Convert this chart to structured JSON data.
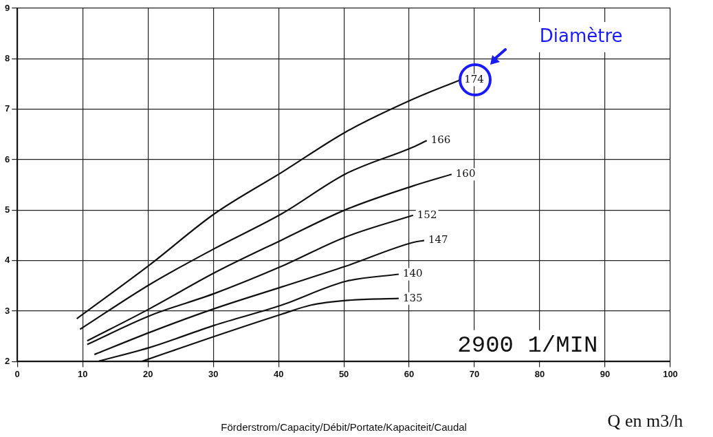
{
  "chart_data": {
    "type": "line",
    "xlabel": "Förderstrom/Capacity/Débit/Portate/Kapaciteit/Caudal",
    "annotations": [
      "Diamètre",
      "2900 1/MIN",
      "Q en m3/h"
    ],
    "xlim": [
      0,
      100
    ],
    "ylim": [
      2,
      9
    ],
    "xticks": [
      0,
      10,
      20,
      30,
      40,
      50,
      60,
      70,
      80,
      90,
      100
    ],
    "yticks": [
      2,
      3,
      4,
      5,
      6,
      7,
      8,
      9
    ],
    "grid": true,
    "legend": false,
    "marker": "none",
    "line_style": "solid",
    "series": [
      {
        "name": "174",
        "color": "#111111",
        "x": [
          9.1,
          20.3,
          30.2,
          40.5,
          50.3,
          60.6,
          67.8
        ],
        "values": [
          2.85,
          3.92,
          4.93,
          5.75,
          6.55,
          7.2,
          7.58
        ]
      },
      {
        "name": "166",
        "color": "#111111",
        "x": [
          9.6,
          20.3,
          30.2,
          40.5,
          50.3,
          60.6,
          62.7
        ],
        "values": [
          2.64,
          3.53,
          4.24,
          4.93,
          5.72,
          6.25,
          6.38
        ]
      },
      {
        "name": "160",
        "color": "#111111",
        "x": [
          10.7,
          20.3,
          30.2,
          40.5,
          50.3,
          60.6,
          66.5
        ],
        "values": [
          2.41,
          3.05,
          3.76,
          4.41,
          5.01,
          5.48,
          5.71
        ]
      },
      {
        "name": "152",
        "color": "#111111",
        "x": [
          10.7,
          20.3,
          30.2,
          40.5,
          50.3,
          60.6
        ],
        "values": [
          2.34,
          2.91,
          3.35,
          3.89,
          4.47,
          4.9
        ]
      },
      {
        "name": "147",
        "color": "#111111",
        "x": [
          11.8,
          20.3,
          30.2,
          40.5,
          50.3,
          60.6,
          62.3
        ],
        "values": [
          2.14,
          2.58,
          3.05,
          3.48,
          3.89,
          4.36,
          4.4
        ]
      },
      {
        "name": "140",
        "color": "#111111",
        "x": [
          12.5,
          20.3,
          30.2,
          40.5,
          50.3,
          58.4
        ],
        "values": [
          2.01,
          2.28,
          2.72,
          3.12,
          3.59,
          3.73
        ]
      },
      {
        "name": "135",
        "color": "#111111",
        "x": [
          19,
          30.2,
          40.5,
          45,
          50.3,
          58.4
        ],
        "values": [
          2.0,
          2.5,
          2.94,
          3.12,
          3.21,
          3.25
        ]
      }
    ]
  }
}
